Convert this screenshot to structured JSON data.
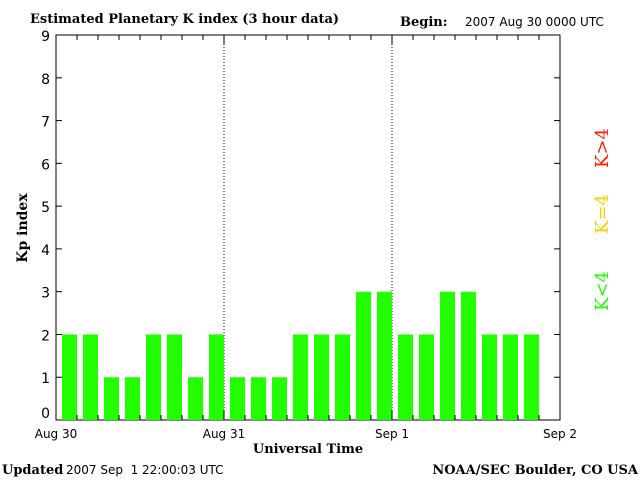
{
  "header": {
    "title": "Estimated Planetary K index (3 hour data)",
    "begin_label": "Begin:",
    "begin_value": "2007 Aug 30 0000 UTC"
  },
  "footer": {
    "updated_label": "Updated",
    "updated_value": "2007 Sep  1 22:00:03 UTC",
    "credit": "NOAA/SEC Boulder, CO USA"
  },
  "legend": {
    "high_label": "K>4",
    "equal_label": "K=4",
    "low_label": "K<4",
    "high_color": "#ff2200",
    "equal_color": "#ffcc00",
    "low_color": "#22ff00"
  },
  "chart_data": {
    "type": "bar",
    "title": "Estimated Planetary K index (3 hour data)",
    "xlabel": "Universal Time",
    "ylabel": "Kp index",
    "ylim": [
      0,
      9
    ],
    "yticks": [
      0,
      1,
      2,
      3,
      4,
      5,
      6,
      7,
      8,
      9
    ],
    "x_ticklabels": [
      "Aug 30",
      "Aug 31",
      "Sep 1",
      "Sep 2"
    ],
    "bar_interval_hours": 3,
    "values": [
      2,
      2,
      1,
      1,
      2,
      2,
      1,
      2,
      1,
      1,
      1,
      2,
      2,
      2,
      3,
      3,
      2,
      2,
      3,
      3,
      2,
      2,
      2
    ],
    "bar_color": "#22ff00",
    "day_separators": "dotted"
  }
}
